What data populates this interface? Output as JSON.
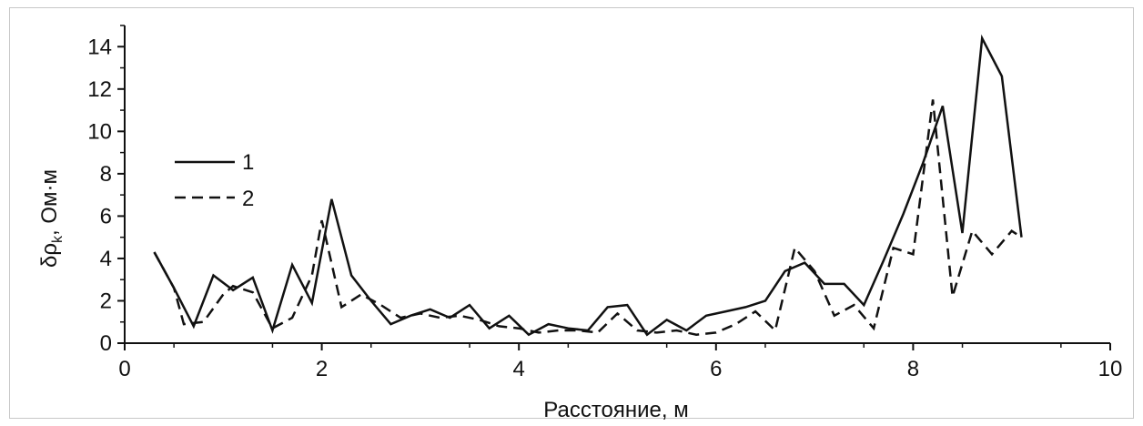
{
  "chart_data": {
    "type": "line",
    "xlabel": "Расстояние, м",
    "ylabel_main": "δρ",
    "ylabel_sub": "k",
    "ylabel_rest": ", Ом·м",
    "xlim": [
      0,
      10
    ],
    "ylim": [
      0,
      15
    ],
    "xticks": [
      "0",
      "2",
      "4",
      "6",
      "8",
      "10"
    ],
    "yticks": [
      "0",
      "2",
      "4",
      "6",
      "8",
      "10",
      "12",
      "14"
    ],
    "grid": false,
    "legend_position": "middle-left",
    "series": [
      {
        "name": "1",
        "style": "solid",
        "color": "#111111",
        "points": [
          [
            0.3,
            4.3
          ],
          [
            0.5,
            2.6
          ],
          [
            0.7,
            0.8
          ],
          [
            0.9,
            3.2
          ],
          [
            1.1,
            2.5
          ],
          [
            1.3,
            3.1
          ],
          [
            1.5,
            0.6
          ],
          [
            1.7,
            3.7
          ],
          [
            1.9,
            1.9
          ],
          [
            2.1,
            6.8
          ],
          [
            2.3,
            3.2
          ],
          [
            2.5,
            2.0
          ],
          [
            2.7,
            0.9
          ],
          [
            2.9,
            1.3
          ],
          [
            3.1,
            1.6
          ],
          [
            3.3,
            1.2
          ],
          [
            3.5,
            1.8
          ],
          [
            3.7,
            0.7
          ],
          [
            3.9,
            1.3
          ],
          [
            4.1,
            0.4
          ],
          [
            4.3,
            0.9
          ],
          [
            4.5,
            0.7
          ],
          [
            4.7,
            0.6
          ],
          [
            4.9,
            1.7
          ],
          [
            5.1,
            1.8
          ],
          [
            5.3,
            0.4
          ],
          [
            5.5,
            1.1
          ],
          [
            5.7,
            0.6
          ],
          [
            5.9,
            1.3
          ],
          [
            6.1,
            1.5
          ],
          [
            6.3,
            1.7
          ],
          [
            6.5,
            2.0
          ],
          [
            6.7,
            3.4
          ],
          [
            6.9,
            3.8
          ],
          [
            7.1,
            2.8
          ],
          [
            7.3,
            2.8
          ],
          [
            7.5,
            1.8
          ],
          [
            7.7,
            3.9
          ],
          [
            7.9,
            6.1
          ],
          [
            8.1,
            8.5
          ],
          [
            8.3,
            11.2
          ],
          [
            8.5,
            5.2
          ],
          [
            8.7,
            14.4
          ],
          [
            8.9,
            12.6
          ],
          [
            9.1,
            5.0
          ]
        ]
      },
      {
        "name": "2",
        "style": "dashed",
        "color": "#111111",
        "points": [
          [
            0.3,
            4.3
          ],
          [
            0.5,
            2.6
          ],
          [
            0.6,
            0.9
          ],
          [
            0.8,
            1.0
          ],
          [
            1.0,
            2.3
          ],
          [
            1.1,
            2.7
          ],
          [
            1.3,
            2.4
          ],
          [
            1.5,
            0.7
          ],
          [
            1.7,
            1.2
          ],
          [
            1.9,
            3.2
          ],
          [
            2.0,
            5.8
          ],
          [
            2.2,
            1.7
          ],
          [
            2.4,
            2.3
          ],
          [
            2.6,
            1.8
          ],
          [
            2.8,
            1.2
          ],
          [
            3.0,
            1.4
          ],
          [
            3.2,
            1.2
          ],
          [
            3.4,
            1.3
          ],
          [
            3.6,
            1.1
          ],
          [
            3.8,
            0.8
          ],
          [
            4.0,
            0.7
          ],
          [
            4.2,
            0.5
          ],
          [
            4.4,
            0.6
          ],
          [
            4.6,
            0.6
          ],
          [
            4.8,
            0.5
          ],
          [
            5.0,
            1.4
          ],
          [
            5.2,
            0.6
          ],
          [
            5.4,
            0.5
          ],
          [
            5.6,
            0.6
          ],
          [
            5.8,
            0.4
          ],
          [
            6.0,
            0.5
          ],
          [
            6.2,
            0.9
          ],
          [
            6.4,
            1.5
          ],
          [
            6.6,
            0.6
          ],
          [
            6.8,
            4.5
          ],
          [
            7.0,
            3.4
          ],
          [
            7.2,
            1.3
          ],
          [
            7.4,
            1.8
          ],
          [
            7.6,
            0.7
          ],
          [
            7.8,
            4.5
          ],
          [
            8.0,
            4.2
          ],
          [
            8.2,
            11.5
          ],
          [
            8.4,
            2.2
          ],
          [
            8.6,
            5.3
          ],
          [
            8.8,
            4.2
          ],
          [
            9.0,
            5.3
          ],
          [
            9.1,
            5.0
          ]
        ]
      }
    ]
  }
}
